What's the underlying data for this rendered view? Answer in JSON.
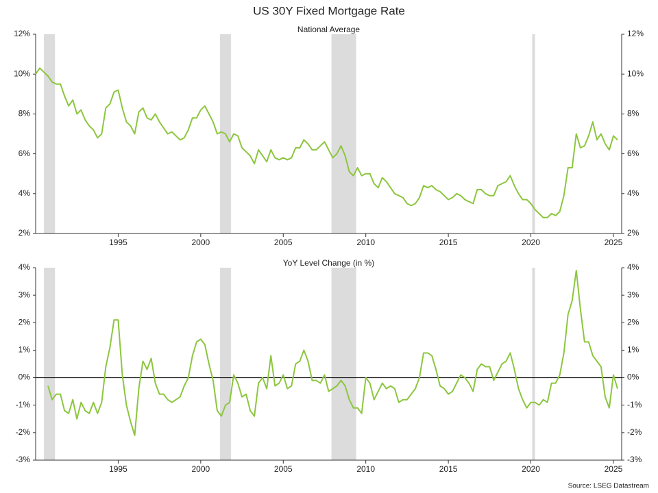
{
  "title": "US 30Y Fixed Mortgage Rate",
  "source": "Source: LSEG Datastream",
  "chart_data": [
    {
      "type": "line",
      "title": "National Average",
      "xlim": [
        1990,
        2025.5
      ],
      "xticks": [
        1995,
        2000,
        2005,
        2010,
        2015,
        2020,
        2025
      ],
      "ylim": [
        2,
        12
      ],
      "yticks": [
        {
          "value": 2,
          "label": "2%"
        },
        {
          "value": 4,
          "label": "4%"
        },
        {
          "value": 6,
          "label": "6%"
        },
        {
          "value": 8,
          "label": "8%"
        },
        {
          "value": 10,
          "label": "10%"
        },
        {
          "value": 12,
          "label": "12%"
        }
      ],
      "shaded_periods": [
        [
          1990.5,
          1991.17
        ],
        [
          2001.17,
          2001.83
        ],
        [
          2007.92,
          2009.42
        ],
        [
          2020.08,
          2020.25
        ]
      ],
      "shade_color": "#dcdcdc",
      "x": [
        1990,
        1990.25,
        1990.5,
        1990.75,
        1991,
        1991.25,
        1991.5,
        1991.75,
        1992,
        1992.25,
        1992.5,
        1992.75,
        1993,
        1993.25,
        1993.5,
        1993.75,
        1994,
        1994.25,
        1994.5,
        1994.75,
        1995,
        1995.25,
        1995.5,
        1995.75,
        1996,
        1996.25,
        1996.5,
        1996.75,
        1997,
        1997.25,
        1997.5,
        1997.75,
        1998,
        1998.25,
        1998.5,
        1998.75,
        1999,
        1999.25,
        1999.5,
        1999.75,
        2000,
        2000.25,
        2000.5,
        2000.75,
        2001,
        2001.25,
        2001.5,
        2001.75,
        2002,
        2002.25,
        2002.5,
        2002.75,
        2003,
        2003.25,
        2003.5,
        2003.75,
        2004,
        2004.25,
        2004.5,
        2004.75,
        2005,
        2005.25,
        2005.5,
        2005.75,
        2006,
        2006.25,
        2006.5,
        2006.75,
        2007,
        2007.25,
        2007.5,
        2007.75,
        2008,
        2008.25,
        2008.5,
        2008.75,
        2009,
        2009.25,
        2009.5,
        2009.75,
        2010,
        2010.25,
        2010.5,
        2010.75,
        2011,
        2011.25,
        2011.5,
        2011.75,
        2012,
        2012.25,
        2012.5,
        2012.75,
        2013,
        2013.25,
        2013.5,
        2013.75,
        2014,
        2014.25,
        2014.5,
        2014.75,
        2015,
        2015.25,
        2015.5,
        2015.75,
        2016,
        2016.25,
        2016.5,
        2016.75,
        2017,
        2017.25,
        2017.5,
        2017.75,
        2018,
        2018.25,
        2018.5,
        2018.75,
        2019,
        2019.25,
        2019.5,
        2019.75,
        2020,
        2020.25,
        2020.5,
        2020.75,
        2021,
        2021.25,
        2021.5,
        2021.75,
        2022,
        2022.25,
        2022.5,
        2022.75,
        2023,
        2023.25,
        2023.5,
        2023.75,
        2024,
        2024.25,
        2024.5,
        2024.75,
        2025,
        2025.25
      ],
      "series": [
        {
          "color": "#8cc63e",
          "values": [
            10.0,
            10.3,
            10.1,
            9.9,
            9.6,
            9.5,
            9.5,
            8.9,
            8.4,
            8.7,
            8.0,
            8.2,
            7.7,
            7.4,
            7.2,
            6.8,
            7.0,
            8.3,
            8.5,
            9.1,
            9.2,
            8.3,
            7.6,
            7.4,
            7.0,
            8.1,
            8.3,
            7.8,
            7.7,
            8.0,
            7.6,
            7.3,
            7.0,
            7.1,
            6.9,
            6.7,
            6.8,
            7.2,
            7.8,
            7.8,
            8.2,
            8.4,
            8.0,
            7.6,
            7.0,
            7.1,
            7.0,
            6.6,
            7.0,
            6.9,
            6.3,
            6.1,
            5.9,
            5.5,
            6.2,
            5.9,
            5.6,
            6.2,
            5.8,
            5.7,
            5.8,
            5.7,
            5.8,
            6.3,
            6.3,
            6.7,
            6.5,
            6.2,
            6.2,
            6.4,
            6.6,
            6.2,
            5.8,
            6.0,
            6.4,
            5.9,
            5.1,
            4.9,
            5.3,
            4.9,
            5.0,
            5.0,
            4.5,
            4.3,
            4.8,
            4.6,
            4.3,
            4.0,
            3.9,
            3.8,
            3.5,
            3.4,
            3.5,
            3.8,
            4.4,
            4.3,
            4.4,
            4.2,
            4.1,
            3.9,
            3.7,
            3.8,
            4.0,
            3.9,
            3.7,
            3.6,
            3.5,
            4.2,
            4.2,
            4.0,
            3.9,
            3.9,
            4.4,
            4.5,
            4.6,
            4.9,
            4.4,
            4.0,
            3.7,
            3.7,
            3.5,
            3.2,
            3.0,
            2.8,
            2.8,
            3.0,
            2.9,
            3.1,
            3.9,
            5.3,
            5.3,
            7.0,
            6.3,
            6.4,
            6.9,
            7.6,
            6.7,
            7.0,
            6.5,
            6.2,
            6.9,
            6.7
          ]
        }
      ]
    },
    {
      "type": "line",
      "title": "YoY Level Change (in %)",
      "xlim": [
        1990,
        2025.5
      ],
      "xticks": [
        1995,
        2000,
        2005,
        2010,
        2015,
        2020,
        2025
      ],
      "ylim": [
        -3,
        4
      ],
      "yticks": [
        {
          "value": -3,
          "label": "-3%"
        },
        {
          "value": -2,
          "label": "-2%"
        },
        {
          "value": -1,
          "label": "-1%"
        },
        {
          "value": 0,
          "label": "0%"
        },
        {
          "value": 1,
          "label": "1%"
        },
        {
          "value": 2,
          "label": "2%"
        },
        {
          "value": 3,
          "label": "3%"
        },
        {
          "value": 4,
          "label": "4%"
        }
      ],
      "zero_line": true,
      "shaded_periods": [
        [
          1990.5,
          1991.17
        ],
        [
          2001.17,
          2001.83
        ],
        [
          2007.92,
          2009.42
        ],
        [
          2020.08,
          2020.25
        ]
      ],
      "shade_color": "#dcdcdc",
      "x": [
        1990.75,
        1991,
        1991.25,
        1991.5,
        1991.75,
        1992,
        1992.25,
        1992.5,
        1992.75,
        1993,
        1993.25,
        1993.5,
        1993.75,
        1994,
        1994.25,
        1994.5,
        1994.75,
        1995,
        1995.25,
        1995.5,
        1995.75,
        1996,
        1996.25,
        1996.5,
        1996.75,
        1997,
        1997.25,
        1997.5,
        1997.75,
        1998,
        1998.25,
        1998.5,
        1998.75,
        1999,
        1999.25,
        1999.5,
        1999.75,
        2000,
        2000.25,
        2000.5,
        2000.75,
        2001,
        2001.25,
        2001.5,
        2001.75,
        2002,
        2002.25,
        2002.5,
        2002.75,
        2003,
        2003.25,
        2003.5,
        2003.75,
        2004,
        2004.25,
        2004.5,
        2004.75,
        2005,
        2005.25,
        2005.5,
        2005.75,
        2006,
        2006.25,
        2006.5,
        2006.75,
        2007,
        2007.25,
        2007.5,
        2007.75,
        2008,
        2008.25,
        2008.5,
        2008.75,
        2009,
        2009.25,
        2009.5,
        2009.75,
        2010,
        2010.25,
        2010.5,
        2010.75,
        2011,
        2011.25,
        2011.5,
        2011.75,
        2012,
        2012.25,
        2012.5,
        2012.75,
        2013,
        2013.25,
        2013.5,
        2013.75,
        2014,
        2014.25,
        2014.5,
        2014.75,
        2015,
        2015.25,
        2015.5,
        2015.75,
        2016,
        2016.25,
        2016.5,
        2016.75,
        2017,
        2017.25,
        2017.5,
        2017.75,
        2018,
        2018.25,
        2018.5,
        2018.75,
        2019,
        2019.25,
        2019.5,
        2019.75,
        2020,
        2020.25,
        2020.5,
        2020.75,
        2021,
        2021.25,
        2021.5,
        2021.75,
        2022,
        2022.25,
        2022.5,
        2022.75,
        2023,
        2023.25,
        2023.5,
        2023.75,
        2024,
        2024.25,
        2024.5,
        2024.75,
        2025,
        2025.25
      ],
      "series": [
        {
          "color": "#8cc63e",
          "values": [
            -0.3,
            -0.8,
            -0.6,
            -0.6,
            -1.2,
            -1.3,
            -0.8,
            -1.5,
            -0.9,
            -1.2,
            -1.3,
            -0.9,
            -1.3,
            -0.9,
            0.4,
            1.1,
            2.1,
            2.1,
            0.1,
            -1.0,
            -1.6,
            -2.1,
            -0.4,
            0.6,
            0.3,
            0.7,
            -0.2,
            -0.6,
            -0.6,
            -0.8,
            -0.9,
            -0.8,
            -0.7,
            -0.3,
            0.0,
            0.8,
            1.3,
            1.4,
            1.2,
            0.5,
            -0.1,
            -1.2,
            -1.4,
            -1.0,
            -0.9,
            0.1,
            -0.2,
            -0.7,
            -0.6,
            -1.2,
            -1.4,
            -0.2,
            0.0,
            -0.4,
            0.8,
            -0.3,
            -0.2,
            0.1,
            -0.4,
            -0.3,
            0.5,
            0.6,
            1.0,
            0.6,
            -0.1,
            -0.1,
            -0.2,
            0.1,
            -0.5,
            -0.4,
            -0.3,
            -0.1,
            -0.3,
            -0.8,
            -1.1,
            -1.1,
            -1.3,
            0.0,
            -0.2,
            -0.8,
            -0.5,
            -0.2,
            -0.4,
            -0.3,
            -0.4,
            -0.9,
            -0.8,
            -0.8,
            -0.6,
            -0.4,
            0.0,
            0.9,
            0.9,
            0.8,
            0.3,
            -0.3,
            -0.4,
            -0.6,
            -0.5,
            -0.2,
            0.1,
            0.0,
            -0.2,
            -0.5,
            0.3,
            0.5,
            0.4,
            0.4,
            -0.1,
            0.2,
            0.5,
            0.6,
            0.9,
            0.3,
            -0.4,
            -0.8,
            -1.1,
            -0.9,
            -0.9,
            -1.0,
            -0.8,
            -0.9,
            -0.2,
            -0.2,
            0.1,
            0.9,
            2.3,
            2.8,
            3.9,
            2.5,
            1.3,
            1.3,
            0.8,
            0.6,
            0.4,
            -0.7,
            -1.1,
            0.1,
            -0.4
          ]
        }
      ]
    }
  ]
}
